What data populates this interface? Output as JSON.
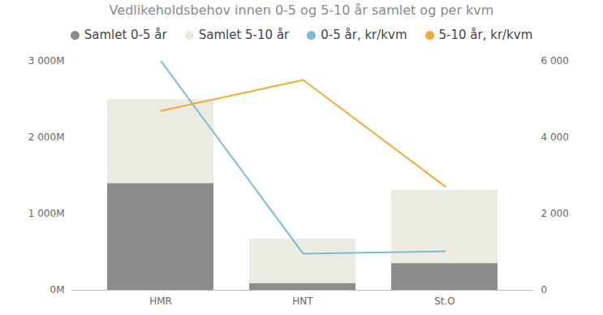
{
  "chart_data": {
    "type": "bar",
    "title": "Vedlikeholdsbehov innen 0-5 og 5-10 år samlet og per kvm",
    "categories": [
      "HMR",
      "HNT",
      "St.O"
    ],
    "stacked": true,
    "grid": false,
    "legend": "top",
    "series": [
      {
        "name": "Samlet 0-5 år",
        "type": "bar",
        "color": "#8c8c8c",
        "values": [
          1400,
          90,
          350
        ]
      },
      {
        "name": "Samlet 5-10 år",
        "type": "bar",
        "color": "#ecebe1",
        "values": [
          1100,
          580,
          960
        ]
      },
      {
        "name": "0-5 år, kr/kvm",
        "type": "line",
        "axis": "y2",
        "color": "#78bcd6",
        "values": [
          6000,
          960,
          1020
        ]
      },
      {
        "name": "5-10 år, kr/kvm",
        "type": "line",
        "axis": "y2",
        "color": "#f4aa2b",
        "values": [
          4700,
          5510,
          2720
        ]
      }
    ],
    "ylim": [
      0,
      3000
    ],
    "yticks": [
      {
        "value": 0,
        "label": "0M"
      },
      {
        "value": 1000,
        "label": "1 000M"
      },
      {
        "value": 2000,
        "label": "2 000M"
      },
      {
        "value": 3000,
        "label": "3 000M"
      }
    ],
    "y2lim": [
      0,
      6000
    ],
    "y2ticks": [
      0,
      {
        "value": 2000,
        "label": "2 000"
      },
      {
        "value": 4000,
        "label": "4 000"
      },
      {
        "value": 6000,
        "label": "6 000"
      }
    ]
  }
}
